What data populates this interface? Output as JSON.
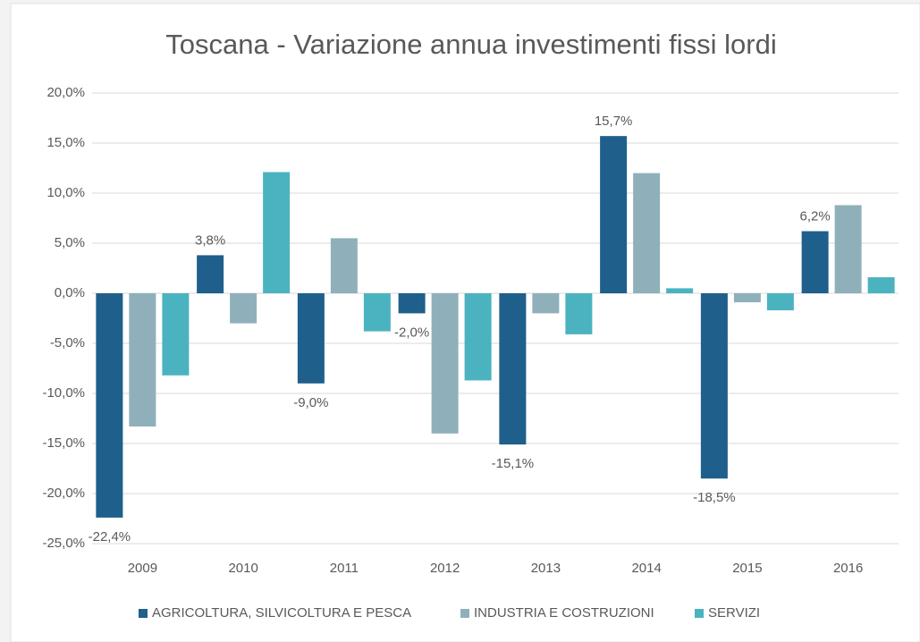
{
  "chart_data": {
    "type": "bar",
    "title": "Toscana - Variazione annua investimenti fissi lordi",
    "categories": [
      "2009",
      "2010",
      "2011",
      "2012",
      "2013",
      "2014",
      "2015",
      "2016"
    ],
    "series": [
      {
        "name": "AGRICOLTURA, SILVICOLTURA E PESCA",
        "color": "#1f5f8b",
        "values": [
          -22.4,
          3.8,
          -9.0,
          -2.0,
          -15.1,
          15.7,
          -18.5,
          6.2
        ],
        "value_labels": [
          "-22,4%",
          "3,8%",
          "-9,0%",
          "-2,0%",
          "-15,1%",
          "15,7%",
          "-18,5%",
          "6,2%"
        ]
      },
      {
        "name": "INDUSTRIA E COSTRUZIONI",
        "color": "#8fb0bb",
        "values": [
          -13.3,
          -3.0,
          5.5,
          -14.0,
          -2.0,
          12.0,
          -0.9,
          8.8
        ]
      },
      {
        "name": "SERVIZI",
        "color": "#4bb3c0",
        "values": [
          -8.2,
          12.1,
          -3.8,
          -8.7,
          -4.1,
          0.5,
          -1.7,
          1.6
        ]
      }
    ],
    "ylim": [
      -25,
      20
    ],
    "yticks": [
      {
        "value": -25,
        "label": "-25,0%"
      },
      {
        "value": -20,
        "label": "-20,0%"
      },
      {
        "value": -15,
        "label": "-15,0%"
      },
      {
        "value": -10,
        "label": "-10,0%"
      },
      {
        "value": -5,
        "label": "-5,0%"
      },
      {
        "value": 0,
        "label": "0,0%"
      },
      {
        "value": 5,
        "label": "5,0%"
      },
      {
        "value": 10,
        "label": "10,0%"
      },
      {
        "value": 15,
        "label": "15,0%"
      },
      {
        "value": 20,
        "label": "20,0%"
      }
    ],
    "grid": true,
    "legend": "bottom"
  }
}
